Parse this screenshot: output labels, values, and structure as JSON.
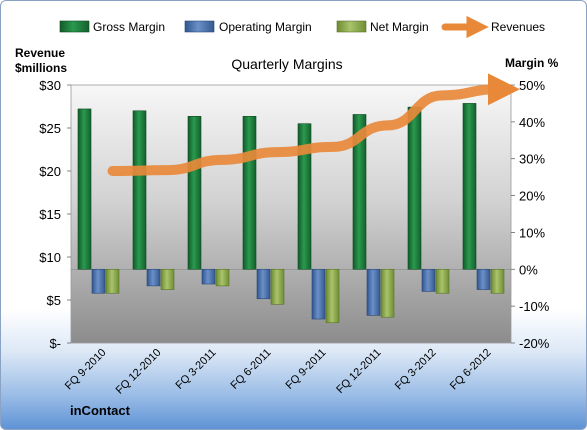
{
  "chart_data": {
    "type": "bar",
    "title": "Quarterly Margins",
    "left_axis_label": [
      "Revenue",
      "$millions"
    ],
    "right_axis_label": "Margin %",
    "footer": "inContact",
    "categories": [
      "FQ 9-2010",
      "FQ 12-2010",
      "FQ 3-2011",
      "FQ 6-2011",
      "FQ 9-2011",
      "FQ 12-2011",
      "FQ 3-2012",
      "FQ 6-2012"
    ],
    "left_axis": {
      "min": 0,
      "max": 30,
      "step": 5,
      "ticks": [
        "$-",
        "$5",
        "$10",
        "$15",
        "$20",
        "$25",
        "$30"
      ]
    },
    "right_axis": {
      "min": -20,
      "max": 50,
      "step": 10,
      "ticks": [
        "-20%",
        "-10%",
        "0%",
        "10%",
        "20%",
        "30%",
        "40%",
        "50%"
      ]
    },
    "series": [
      {
        "name": "Gross Margin",
        "kind": "bar",
        "axis": "right",
        "color": "#1e7a3c",
        "values": [
          43.5,
          43,
          41.5,
          41.5,
          39.5,
          42,
          44,
          45
        ]
      },
      {
        "name": "Operating Margin",
        "kind": "bar",
        "axis": "right",
        "color": "#4a6fa8",
        "values": [
          -6.5,
          -4.5,
          -4,
          -8,
          -13.5,
          -12.5,
          -6,
          -5.5
        ]
      },
      {
        "name": "Net Margin",
        "kind": "bar",
        "axis": "right",
        "color": "#8fad4c",
        "values": [
          -6.5,
          -5.5,
          -4.5,
          -9.5,
          -14.5,
          -13,
          -6.5,
          -6.5
        ]
      },
      {
        "name": "Revenues",
        "kind": "line",
        "axis": "left",
        "color": "#e8893a",
        "values": [
          20,
          20.1,
          21.3,
          22.2,
          22.8,
          25.3,
          28.8,
          29.5
        ]
      }
    ],
    "legend_position": "top",
    "grid": false
  }
}
